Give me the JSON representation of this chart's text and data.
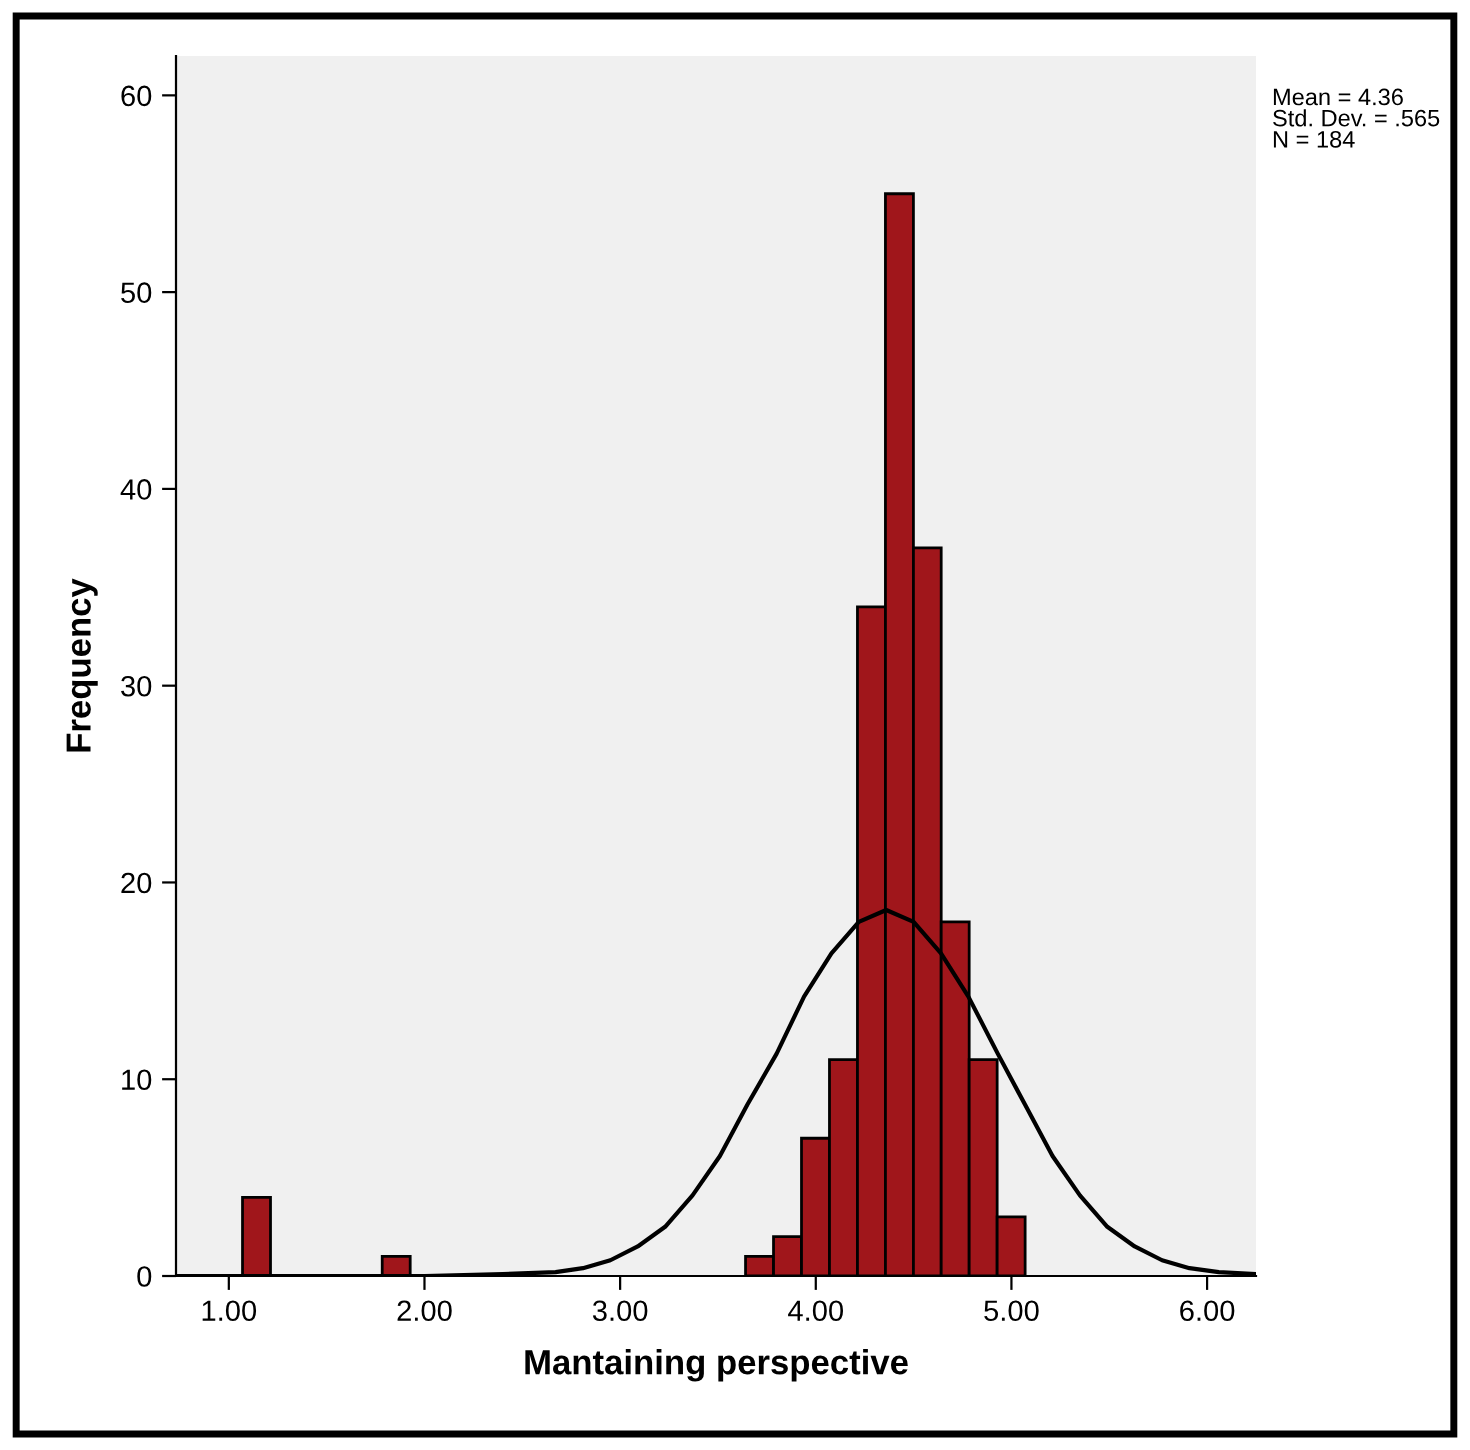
{
  "chart_data": {
    "type": "histogram",
    "xlabel": "Mantaining perspective",
    "ylabel": "Frequency",
    "bins": [
      1.07,
      1.213,
      1.356,
      1.499,
      1.641,
      1.784,
      1.927,
      2.07,
      2.213,
      2.356,
      2.499,
      2.641,
      2.784,
      2.927,
      3.07,
      3.213,
      3.356,
      3.499,
      3.641,
      3.784,
      3.927,
      4.07,
      4.213,
      4.356,
      4.499,
      4.641,
      4.784,
      4.927,
      5.07
    ],
    "values": [
      4,
      0,
      0,
      0,
      0,
      1,
      0,
      0,
      0,
      0,
      0,
      0,
      0,
      0,
      0,
      0,
      0,
      0,
      1,
      2,
      7,
      11,
      34,
      55,
      37,
      18,
      11,
      3
    ],
    "color": "#a0161b",
    "series": [
      {
        "type": "line",
        "color": "#000000",
        "x": [
          0.73,
          1.5,
          2.0,
          2.4,
          2.67,
          2.81,
          2.95,
          3.09,
          3.23,
          3.37,
          3.51,
          3.65,
          3.8,
          3.94,
          4.08,
          4.22,
          4.36,
          4.5,
          4.64,
          4.78,
          4.93,
          5.07,
          5.21,
          5.35,
          5.49,
          5.63,
          5.77,
          5.91,
          6.06,
          6.25
        ],
        "values": [
          0,
          0,
          0,
          0.1,
          0.2,
          0.4,
          0.8,
          1.5,
          2.5,
          4.1,
          6.1,
          8.7,
          11.3,
          14.2,
          16.4,
          18.0,
          18.6,
          18.0,
          16.4,
          14.2,
          11.3,
          8.7,
          6.1,
          4.1,
          2.5,
          1.5,
          0.8,
          0.4,
          0.2,
          0.1
        ]
      }
    ],
    "xlim": [
      0.73,
      6.25
    ],
    "xticks": [
      {
        "value": 1,
        "label": "1.00"
      },
      {
        "value": 2,
        "label": "2.00"
      },
      {
        "value": 3,
        "label": "3.00"
      },
      {
        "value": 4,
        "label": "4.00"
      },
      {
        "value": 5,
        "label": "5.00"
      },
      {
        "value": 6,
        "label": "6.00"
      }
    ],
    "ylim": [
      0,
      62
    ],
    "yticks": [
      0,
      10,
      20,
      30,
      40,
      50,
      60
    ],
    "grid": false,
    "legend": false,
    "annotations": [
      "Mean = 4.36\nStd. Dev. = .565\nN = 184"
    ]
  }
}
